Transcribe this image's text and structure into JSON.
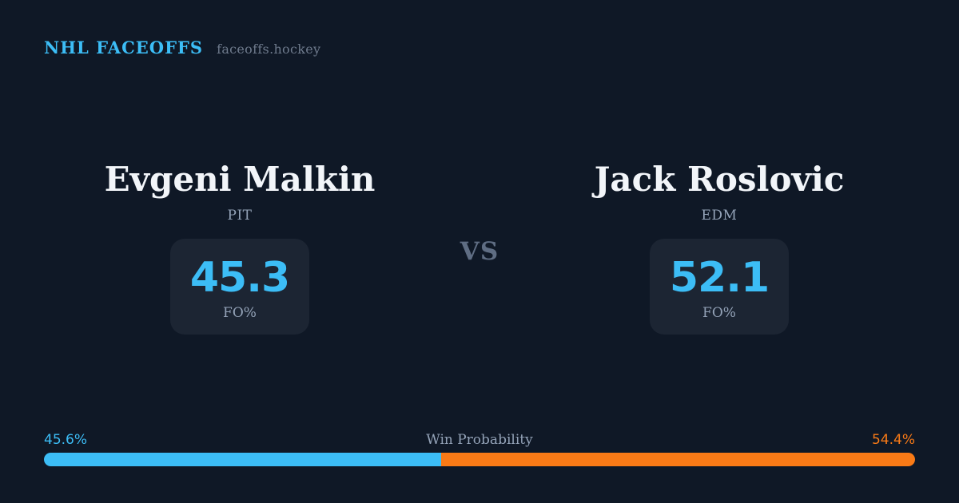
{
  "brand": {
    "title": "NHL FACEOFFS",
    "domain": "faceoffs.hockey"
  },
  "matchup": {
    "vs_label": "VS",
    "players": [
      {
        "name": "Evgeni Malkin",
        "team": "PIT",
        "stat_value": "45.3",
        "stat_label": "FO%"
      },
      {
        "name": "Jack Roslovic",
        "team": "EDM",
        "stat_value": "52.1",
        "stat_label": "FO%"
      }
    ]
  },
  "win_probability": {
    "label": "Win Probability",
    "left_pct": "45.6%",
    "right_pct": "54.4%",
    "left_value": 45.6,
    "right_value": 54.4
  },
  "colors": {
    "bg": "#0f1826",
    "box_bg": "#1c2533",
    "text_primary": "#f2f5f9",
    "text_muted": "#94a3b8",
    "text_dim": "#6e7a8c",
    "vs_color": "#5f6d83",
    "accent_blue": "#3cbdf6",
    "accent_orange": "#f97a16"
  },
  "chart_data": {
    "type": "bar",
    "title": "Win Probability",
    "categories": [
      "Evgeni Malkin (PIT)",
      "Jack Roslovic (EDM)"
    ],
    "series": [
      {
        "name": "Faceoff %",
        "values": [
          45.3,
          52.1
        ]
      },
      {
        "name": "Win Probability %",
        "values": [
          45.6,
          54.4
        ]
      }
    ],
    "legend_position": "none",
    "grid": false,
    "xlabel": "",
    "ylabel": "",
    "ylim": [
      0,
      100
    ]
  }
}
